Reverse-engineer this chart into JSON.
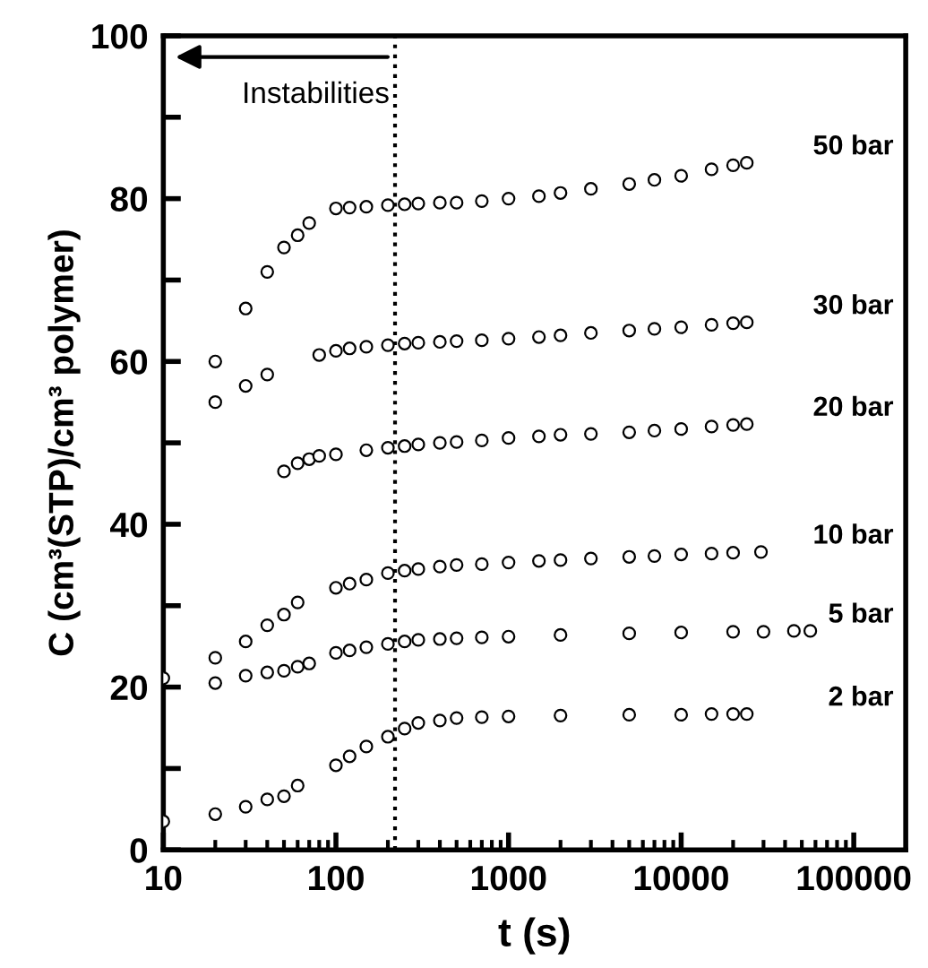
{
  "chart_data": {
    "type": "scatter",
    "xlabel": "t (s)",
    "ylabel": "C (cm³(STP)/cm³ polymer)",
    "log": "x",
    "xlim": [
      10,
      200000
    ],
    "xticks": [
      10,
      100,
      1000,
      10000,
      100000
    ],
    "ylim": [
      0,
      100
    ],
    "yticks": [
      0,
      {
        "value": 10,
        "label": null
      },
      20,
      {
        "value": 30,
        "label": null
      },
      40,
      {
        "value": 50,
        "label": null
      },
      60,
      {
        "value": 70,
        "label": null
      },
      80,
      {
        "value": 90,
        "label": null
      },
      100
    ],
    "grid": false,
    "legend": false,
    "marker": "circle",
    "series": [
      {
        "name": "50 bar",
        "color": "#000000",
        "x": [
          20,
          30,
          40,
          50,
          60,
          70,
          100,
          120,
          150,
          200,
          250,
          300,
          400,
          500,
          700,
          1000,
          1500,
          2000,
          3000,
          5000,
          7000,
          10000,
          15000,
          20000,
          24000
        ],
        "values": [
          60,
          66.5,
          71,
          74,
          75.5,
          77,
          78.8,
          78.9,
          79,
          79.2,
          79.3,
          79.4,
          79.5,
          79.5,
          79.7,
          80,
          80.3,
          80.7,
          81.2,
          81.8,
          82.3,
          82.8,
          83.6,
          84.1,
          84.4
        ]
      },
      {
        "name": "30 bar",
        "color": "#000000",
        "x": [
          20,
          30,
          40,
          80,
          100,
          120,
          150,
          200,
          250,
          300,
          400,
          500,
          700,
          1000,
          1500,
          2000,
          3000,
          5000,
          7000,
          10000,
          15000,
          20000,
          24000
        ],
        "values": [
          55,
          57,
          58.4,
          60.8,
          61.3,
          61.6,
          61.8,
          62,
          62.2,
          62.3,
          62.4,
          62.5,
          62.6,
          62.8,
          63,
          63.2,
          63.5,
          63.8,
          64,
          64.2,
          64.5,
          64.7,
          64.8
        ]
      },
      {
        "name": "20 bar",
        "color": "#000000",
        "x": [
          50,
          60,
          70,
          80,
          100,
          150,
          200,
          250,
          300,
          400,
          500,
          700,
          1000,
          1500,
          2000,
          3000,
          5000,
          7000,
          10000,
          15000,
          20000,
          24000
        ],
        "values": [
          46.5,
          47.5,
          48,
          48.4,
          48.6,
          49.1,
          49.4,
          49.6,
          49.8,
          50,
          50.1,
          50.3,
          50.6,
          50.8,
          51,
          51.1,
          51.3,
          51.5,
          51.7,
          52,
          52.2,
          52.3
        ]
      },
      {
        "name": "10 bar",
        "color": "#000000",
        "x": [
          20,
          30,
          40,
          50,
          60,
          100,
          120,
          150,
          200,
          250,
          300,
          400,
          500,
          700,
          1000,
          1500,
          2000,
          3000,
          5000,
          7000,
          10000,
          15000,
          20000,
          29000
        ],
        "values": [
          23.6,
          25.6,
          27.6,
          28.9,
          30.4,
          32.2,
          32.7,
          33.2,
          34,
          34.3,
          34.5,
          34.8,
          35,
          35.1,
          35.3,
          35.5,
          35.6,
          35.8,
          36,
          36.1,
          36.3,
          36.4,
          36.5,
          36.6
        ]
      },
      {
        "name": "5 bar",
        "color": "#000000",
        "x": [
          10,
          20,
          30,
          40,
          50,
          60,
          70,
          100,
          120,
          150,
          200,
          250,
          300,
          400,
          500,
          700,
          1000,
          2000,
          5000,
          10000,
          20000,
          30000,
          45000,
          56000
        ],
        "values": [
          21.1,
          20.5,
          21.4,
          21.8,
          22,
          22.5,
          22.9,
          24.2,
          24.5,
          24.9,
          25.3,
          25.6,
          25.8,
          25.9,
          26,
          26.1,
          26.2,
          26.4,
          26.6,
          26.7,
          26.8,
          26.8,
          26.9,
          26.9
        ]
      },
      {
        "name": "2 bar",
        "color": "#000000",
        "x": [
          10,
          20,
          30,
          40,
          50,
          60,
          100,
          120,
          150,
          200,
          250,
          300,
          400,
          500,
          700,
          1000,
          2000,
          5000,
          10000,
          15000,
          20000,
          24000
        ],
        "values": [
          3.5,
          4.4,
          5.3,
          6.2,
          6.6,
          7.9,
          10.4,
          11.5,
          12.7,
          13.9,
          14.9,
          15.6,
          15.9,
          16.2,
          16.3,
          16.4,
          16.5,
          16.6,
          16.6,
          16.7,
          16.7,
          16.7
        ]
      }
    ],
    "ref_lines": [
      {
        "axis": "x",
        "value": 220,
        "label": "Instabilities",
        "line_style": "dotted",
        "color": "#000000"
      }
    ]
  }
}
